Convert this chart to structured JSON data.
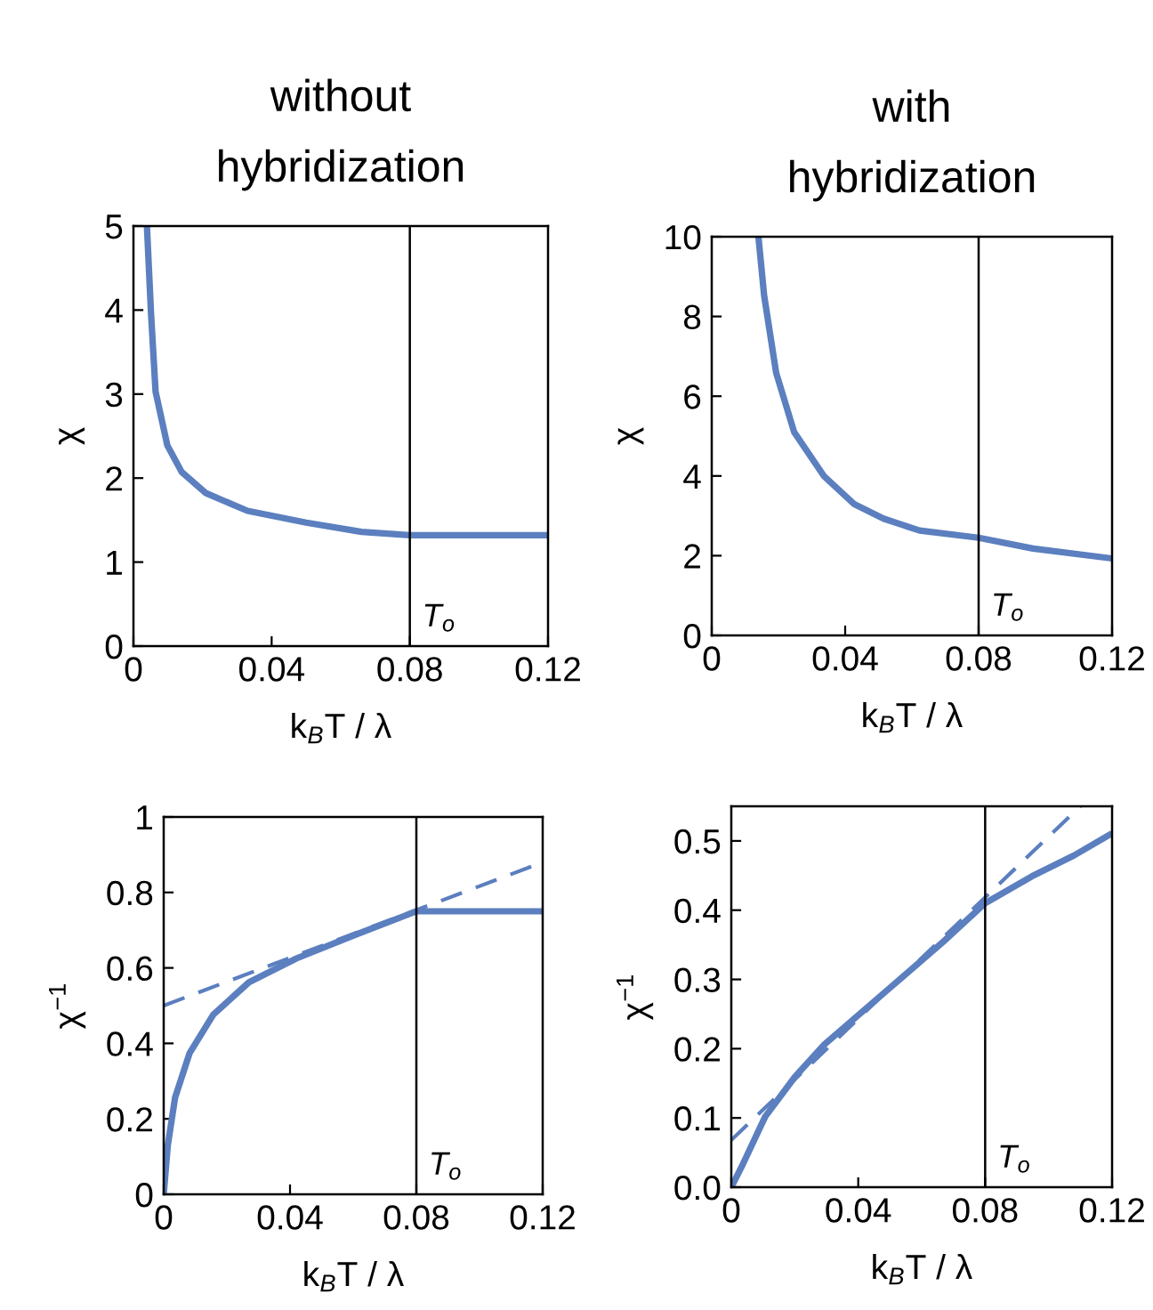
{
  "chart_data": [
    {
      "type": "line",
      "title": "without\nhybridization",
      "xlabel": "k$_{B}$T / λ",
      "ylabel": "χ",
      "xlim": [
        0,
        0.12
      ],
      "ylim": [
        0,
        5
      ],
      "xticks": [
        0,
        0.04,
        0.08,
        0.12
      ],
      "yticks": [
        0,
        1,
        2,
        3,
        4,
        5
      ],
      "series": [
        {
          "color": "#5b7fbf",
          "line_style": "solid",
          "x": [
            0.0039,
            0.0051,
            0.0064,
            0.0098,
            0.014,
            0.021,
            0.033,
            0.05,
            0.066,
            0.08,
            0.12
          ],
          "values": [
            5,
            3.95,
            3.03,
            2.39,
            2.07,
            1.82,
            1.61,
            1.47,
            1.36,
            1.32,
            1.32
          ]
        }
      ],
      "ref_lines": [
        {
          "axis": "x",
          "value": 0.08,
          "label": "T$_{o}$",
          "color": "#000000"
        }
      ]
    },
    {
      "type": "line",
      "title": "with\nhybridization",
      "xlabel": "k$_{B}$T / λ",
      "ylabel": "χ",
      "xlim": [
        0,
        0.12
      ],
      "ylim": [
        0,
        10
      ],
      "xticks": [
        0,
        0.04,
        0.08,
        0.12
      ],
      "yticks": [
        0,
        2,
        4,
        6,
        8,
        10
      ],
      "series": [
        {
          "color": "#5b7fbf",
          "line_style": "solid",
          "x": [
            0.014,
            0.0157,
            0.0193,
            0.0247,
            0.0336,
            0.0426,
            0.0515,
            0.0623,
            0.08,
            0.0963,
            0.12
          ],
          "values": [
            10,
            8.53,
            6.59,
            5.1,
            4.0,
            3.3,
            2.93,
            2.63,
            2.45,
            2.18,
            1.93
          ]
        }
      ],
      "ref_lines": [
        {
          "axis": "x",
          "value": 0.08,
          "label": "T$_{o}$",
          "color": "#000000"
        }
      ]
    },
    {
      "type": "line",
      "xlabel": "k$_{B}$T / λ",
      "ylabel": "χ$^{−1}$",
      "xlim": [
        0,
        0.12
      ],
      "ylim": [
        0,
        1
      ],
      "xticks": [
        0,
        0.04,
        0.08,
        0.12
      ],
      "yticks": [
        0,
        0.2,
        0.4,
        0.6,
        0.8,
        1
      ],
      "series": [
        {
          "color": "#5b7fbf",
          "line_style": "solid",
          "x": [
            0,
            0.0013,
            0.0036,
            0.0082,
            0.0157,
            0.027,
            0.042,
            0.0607,
            0.08,
            0.12
          ],
          "values": [
            0,
            0.13,
            0.256,
            0.374,
            0.476,
            0.562,
            0.625,
            0.688,
            0.75,
            0.75
          ]
        },
        {
          "color": "#5b7fbf",
          "line_style": "dashed",
          "x": [
            0,
            0.12
          ],
          "values": [
            0.5,
            0.88
          ]
        }
      ],
      "ref_lines": [
        {
          "axis": "x",
          "value": 0.08,
          "label": "T$_{o}$",
          "color": "#000000"
        }
      ]
    },
    {
      "type": "line",
      "xlabel": "k$_{B}$T / λ",
      "ylabel": "χ$^{−1}$",
      "xlim": [
        0,
        0.12
      ],
      "ylim": [
        0,
        0.55
      ],
      "xticks": [
        0,
        0.04,
        0.08,
        0.12
      ],
      "yticks": [
        {
          "value": 0,
          "label": "0.0"
        },
        0.1,
        0.2,
        0.3,
        0.4,
        0.5
      ],
      "series": [
        {
          "color": "#5b7fbf",
          "line_style": "solid",
          "x": [
            0,
            0.0032,
            0.0107,
            0.02,
            0.0293,
            0.048,
            0.0667,
            0.08,
            0.0948,
            0.108,
            0.12
          ],
          "values": [
            0,
            0.029,
            0.102,
            0.159,
            0.206,
            0.28,
            0.354,
            0.41,
            0.449,
            0.479,
            0.511
          ]
        },
        {
          "color": "#5b7fbf",
          "line_style": "dashed",
          "x": [
            0,
            0.11
          ],
          "values": [
            0.068,
            0.55
          ]
        }
      ],
      "ref_lines": [
        {
          "axis": "x",
          "value": 0.08,
          "label": "T$_{o}$",
          "color": "#000000"
        }
      ]
    }
  ]
}
